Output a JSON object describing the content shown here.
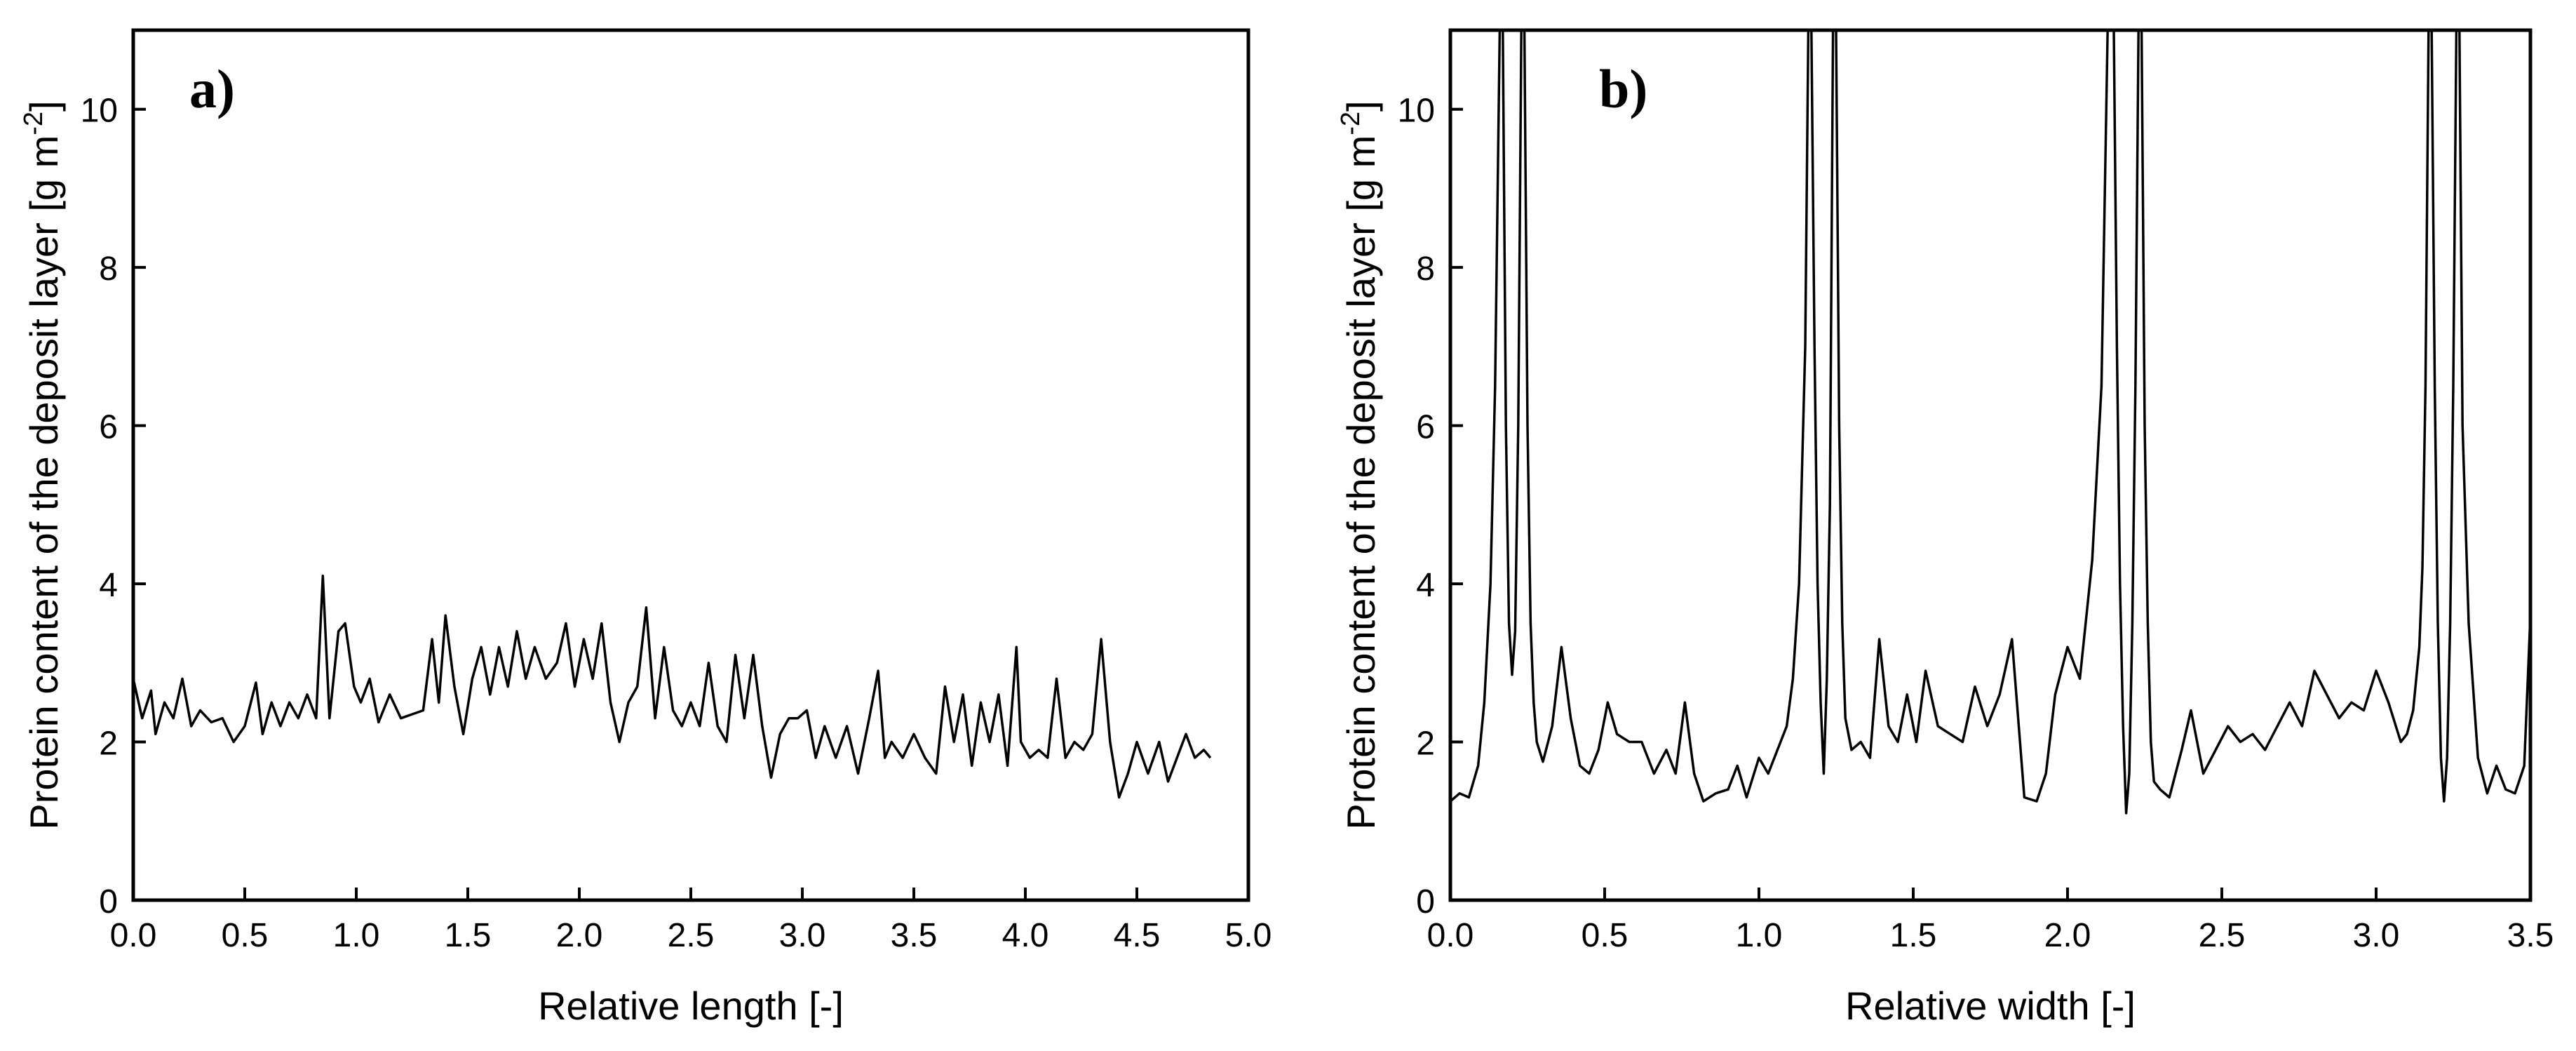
{
  "chart_data": [
    {
      "type": "line",
      "panel_label": "a)",
      "xlabel": "Relative length [-]",
      "ylabel_main": "Protein content of the deposit layer [g m",
      "ylabel_sup": "-2",
      "ylabel_end": "]",
      "xlim": [
        0,
        5
      ],
      "ylim": [
        0,
        11
      ],
      "xticks": [
        0,
        0.5,
        1,
        1.5,
        2,
        2.5,
        3,
        3.5,
        4,
        4.5,
        5
      ],
      "xtick_labels": [
        "0.0",
        "0.5",
        "1.0",
        "1.5",
        "2.0",
        "2.5",
        "3.0",
        "3.5",
        "4.0",
        "4.5",
        "5.0"
      ],
      "yticks": [
        0,
        2,
        4,
        6,
        8,
        10
      ],
      "ytick_labels": [
        "0",
        "2",
        "4",
        "6",
        "8",
        "10"
      ],
      "grid": false,
      "series": [
        {
          "x": [
            0.0,
            0.04,
            0.08,
            0.1,
            0.14,
            0.18,
            0.22,
            0.26,
            0.3,
            0.35,
            0.4,
            0.45,
            0.5,
            0.55,
            0.58,
            0.62,
            0.66,
            0.7,
            0.74,
            0.78,
            0.82,
            0.85,
            0.88,
            0.92,
            0.95,
            0.99,
            1.02,
            1.06,
            1.1,
            1.15,
            1.2,
            1.25,
            1.3,
            1.34,
            1.37,
            1.4,
            1.44,
            1.48,
            1.52,
            1.56,
            1.6,
            1.64,
            1.68,
            1.72,
            1.76,
            1.8,
            1.85,
            1.9,
            1.94,
            1.98,
            2.02,
            2.06,
            2.1,
            2.14,
            2.18,
            2.22,
            2.26,
            2.3,
            2.34,
            2.38,
            2.42,
            2.46,
            2.5,
            2.54,
            2.58,
            2.62,
            2.66,
            2.7,
            2.74,
            2.78,
            2.82,
            2.86,
            2.9,
            2.94,
            2.98,
            3.02,
            3.06,
            3.1,
            3.15,
            3.2,
            3.25,
            3.3,
            3.34,
            3.37,
            3.4,
            3.45,
            3.5,
            3.55,
            3.6,
            3.64,
            3.68,
            3.72,
            3.76,
            3.8,
            3.84,
            3.88,
            3.92,
            3.96,
            3.98,
            4.02,
            4.06,
            4.1,
            4.14,
            4.18,
            4.22,
            4.26,
            4.3,
            4.34,
            4.38,
            4.42,
            4.46,
            4.5,
            4.55,
            4.6,
            4.64,
            4.68,
            4.72,
            4.76,
            4.8,
            4.83
          ],
          "y": [
            2.8,
            2.3,
            2.65,
            2.1,
            2.5,
            2.3,
            2.8,
            2.2,
            2.4,
            2.25,
            2.3,
            2.0,
            2.2,
            2.75,
            2.1,
            2.5,
            2.2,
            2.5,
            2.3,
            2.6,
            2.3,
            4.1,
            2.3,
            3.4,
            3.5,
            2.7,
            2.5,
            2.8,
            2.25,
            2.6,
            2.3,
            2.35,
            2.4,
            3.3,
            2.5,
            3.6,
            2.7,
            2.1,
            2.8,
            3.2,
            2.6,
            3.2,
            2.7,
            3.4,
            2.8,
            3.2,
            2.8,
            3.0,
            3.5,
            2.7,
            3.3,
            2.8,
            3.5,
            2.5,
            2.0,
            2.5,
            2.7,
            3.7,
            2.3,
            3.2,
            2.4,
            2.2,
            2.5,
            2.2,
            3.0,
            2.2,
            2.0,
            3.1,
            2.3,
            3.1,
            2.2,
            1.55,
            2.1,
            2.3,
            2.3,
            2.4,
            1.8,
            2.2,
            1.8,
            2.2,
            1.6,
            2.3,
            2.9,
            1.8,
            2.0,
            1.8,
            2.1,
            1.8,
            1.6,
            2.7,
            2.0,
            2.6,
            1.7,
            2.5,
            2.0,
            2.6,
            1.7,
            3.2,
            2.0,
            1.8,
            1.9,
            1.8,
            2.8,
            1.8,
            2.0,
            1.9,
            2.1,
            3.3,
            2.0,
            1.3,
            1.6,
            2.0,
            1.6,
            2.0,
            1.5,
            1.8,
            2.1,
            1.8,
            1.9,
            1.8
          ]
        }
      ]
    },
    {
      "type": "line",
      "panel_label": "b)",
      "xlabel": "Relative width [-]",
      "ylabel_main": "Protein content of the deposit layer [g m",
      "ylabel_sup": "-2",
      "ylabel_end": "]",
      "xlim": [
        0,
        3.5
      ],
      "ylim": [
        0,
        11
      ],
      "xticks": [
        0,
        0.5,
        1,
        1.5,
        2,
        2.5,
        3,
        3.5
      ],
      "xtick_labels": [
        "0.0",
        "0.5",
        "1.0",
        "1.5",
        "2.0",
        "2.5",
        "3.0",
        "3.5"
      ],
      "yticks": [
        0,
        2,
        4,
        6,
        8,
        10
      ],
      "ytick_labels": [
        "0",
        "2",
        "4",
        "6",
        "8",
        "10"
      ],
      "grid": false,
      "series": [
        {
          "x": [
            0.0,
            0.03,
            0.06,
            0.09,
            0.11,
            0.13,
            0.145,
            0.16,
            0.17,
            0.18,
            0.19,
            0.2,
            0.21,
            0.22,
            0.23,
            0.24,
            0.25,
            0.26,
            0.27,
            0.28,
            0.3,
            0.33,
            0.36,
            0.39,
            0.42,
            0.45,
            0.48,
            0.51,
            0.54,
            0.58,
            0.62,
            0.66,
            0.7,
            0.73,
            0.76,
            0.79,
            0.82,
            0.86,
            0.9,
            0.93,
            0.96,
            1.0,
            1.03,
            1.06,
            1.09,
            1.11,
            1.13,
            1.15,
            1.16,
            1.17,
            1.18,
            1.19,
            1.2,
            1.21,
            1.22,
            1.23,
            1.24,
            1.25,
            1.26,
            1.27,
            1.28,
            1.3,
            1.33,
            1.36,
            1.39,
            1.42,
            1.45,
            1.48,
            1.51,
            1.54,
            1.58,
            1.62,
            1.66,
            1.7,
            1.74,
            1.78,
            1.82,
            1.86,
            1.9,
            1.93,
            1.96,
            2.0,
            2.04,
            2.08,
            2.11,
            2.13,
            2.15,
            2.16,
            2.17,
            2.18,
            2.19,
            2.2,
            2.21,
            2.22,
            2.23,
            2.24,
            2.25,
            2.26,
            2.27,
            2.28,
            2.3,
            2.33,
            2.37,
            2.4,
            2.44,
            2.48,
            2.52,
            2.56,
            2.6,
            2.64,
            2.68,
            2.72,
            2.76,
            2.8,
            2.84,
            2.88,
            2.92,
            2.96,
            3.0,
            3.04,
            3.08,
            3.1,
            3.12,
            3.14,
            3.15,
            3.16,
            3.17,
            3.18,
            3.19,
            3.2,
            3.21,
            3.22,
            3.23,
            3.24,
            3.25,
            3.26,
            3.27,
            3.28,
            3.3,
            3.33,
            3.36,
            3.39,
            3.42,
            3.45,
            3.48,
            3.5
          ],
          "y": [
            1.25,
            1.35,
            1.3,
            1.7,
            2.5,
            4.0,
            6.5,
            11.0,
            11.0,
            6.0,
            3.5,
            2.85,
            3.4,
            6.0,
            11.0,
            11.0,
            6.0,
            3.5,
            2.5,
            2.0,
            1.75,
            2.2,
            3.2,
            2.3,
            1.7,
            1.6,
            1.9,
            2.5,
            2.1,
            2.0,
            2.0,
            1.6,
            1.9,
            1.6,
            2.5,
            1.6,
            1.25,
            1.35,
            1.4,
            1.7,
            1.3,
            1.8,
            1.6,
            1.9,
            2.2,
            2.8,
            4.0,
            7.0,
            11.0,
            11.0,
            7.0,
            4.0,
            2.5,
            1.6,
            2.8,
            5.0,
            11.0,
            11.0,
            6.0,
            3.5,
            2.3,
            1.9,
            2.0,
            1.8,
            3.3,
            2.2,
            2.0,
            2.6,
            2.0,
            2.9,
            2.2,
            2.1,
            2.0,
            2.7,
            2.2,
            2.6,
            3.3,
            1.3,
            1.25,
            1.6,
            2.6,
            3.2,
            2.8,
            4.3,
            6.5,
            11.0,
            11.0,
            7.0,
            4.0,
            2.2,
            1.1,
            1.6,
            3.5,
            6.5,
            11.0,
            11.0,
            6.0,
            3.5,
            2.0,
            1.5,
            1.4,
            1.3,
            1.9,
            2.4,
            1.6,
            1.9,
            2.2,
            2.0,
            2.1,
            1.9,
            2.2,
            2.5,
            2.2,
            2.9,
            2.6,
            2.3,
            2.5,
            2.4,
            2.9,
            2.5,
            2.0,
            2.1,
            2.4,
            3.2,
            4.2,
            6.5,
            11.0,
            11.0,
            6.5,
            3.5,
            1.8,
            1.25,
            1.8,
            3.5,
            6.5,
            11.0,
            11.0,
            6.0,
            3.5,
            1.8,
            1.35,
            1.7,
            1.4,
            1.35,
            1.7,
            3.6
          ]
        }
      ]
    }
  ]
}
